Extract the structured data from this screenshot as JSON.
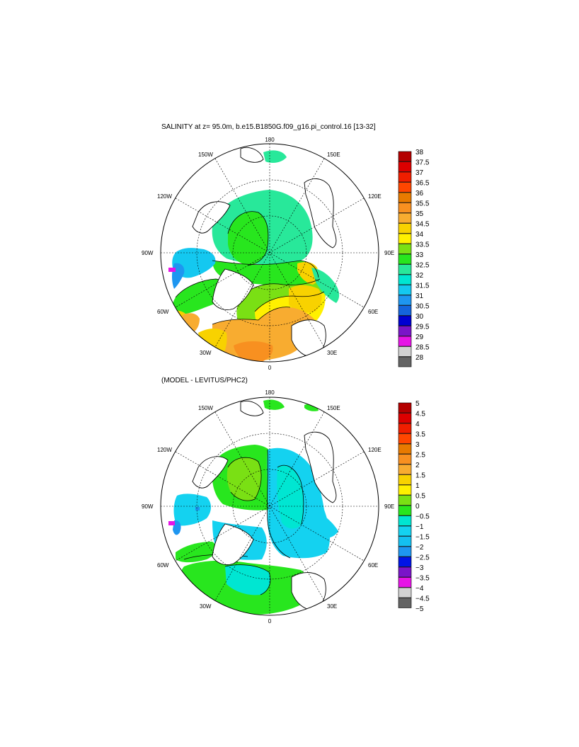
{
  "panels": [
    {
      "title": "SALINITY at z=  95.0m, b.e15.B1850G.f09_g16.pi_control.16 [13-32]",
      "lon_labels": {
        "n": "180",
        "s": "0",
        "e": "90E",
        "w": "90W",
        "ne1": "150E",
        "ne2": "120E",
        "se1": "60E",
        "se2": "30E",
        "nw1": "150W",
        "nw2": "120W",
        "sw1": "60W",
        "sw2": "30W"
      },
      "colorbar": {
        "labels": [
          "38",
          "37.5",
          "37",
          "36.5",
          "36",
          "35.5",
          "35",
          "34.5",
          "34",
          "33.5",
          "33",
          "32.5",
          "32",
          "31.5",
          "31",
          "30.5",
          "30",
          "29.5",
          "29",
          "28.5",
          "28"
        ],
        "colors": [
          "#b40000",
          "#dc0000",
          "#f01e00",
          "#ff4600",
          "#e87a00",
          "#f89020",
          "#f8ac30",
          "#f8d200",
          "#fff000",
          "#7ae014",
          "#28e61e",
          "#28e89a",
          "#00e6d2",
          "#14c8f0",
          "#1e96f0",
          "#1464dc",
          "#0000d2",
          "#7a14c8",
          "#e614e6",
          "#d2d2d2",
          "#646464"
        ]
      }
    },
    {
      "title": "(MODEL - LEVITUS/PHC2)",
      "lon_labels": {
        "n": "180",
        "s": "0",
        "e": "90E",
        "w": "90W",
        "ne1": "150E",
        "ne2": "120E",
        "se1": "60E",
        "se2": "30E",
        "nw1": "150W",
        "nw2": "120W",
        "sw1": "60W",
        "sw2": "30W"
      },
      "colorbar": {
        "labels": [
          "5",
          "4.5",
          "4",
          "3.5",
          "3",
          "2.5",
          "2",
          "1.5",
          "1",
          "0.5",
          "0",
          "−0.5",
          "−1",
          "−1.5",
          "−2",
          "−2.5",
          "−3",
          "−3.5",
          "−4",
          "−4.5",
          "−5"
        ],
        "colors": [
          "#b40000",
          "#dc0000",
          "#f01e00",
          "#ff4600",
          "#e87a00",
          "#f89020",
          "#f8ac30",
          "#f8d200",
          "#fff000",
          "#7ae014",
          "#28e61e",
          "#00e6d2",
          "#14d2f0",
          "#14c0f0",
          "#1e96f0",
          "#0014e6",
          "#7a14c8",
          "#e614e6",
          "#d2d2d2",
          "#646464"
        ]
      }
    }
  ],
  "colors": {
    "land": "#ffffff",
    "coast": "#000000",
    "grid": "#000000"
  }
}
